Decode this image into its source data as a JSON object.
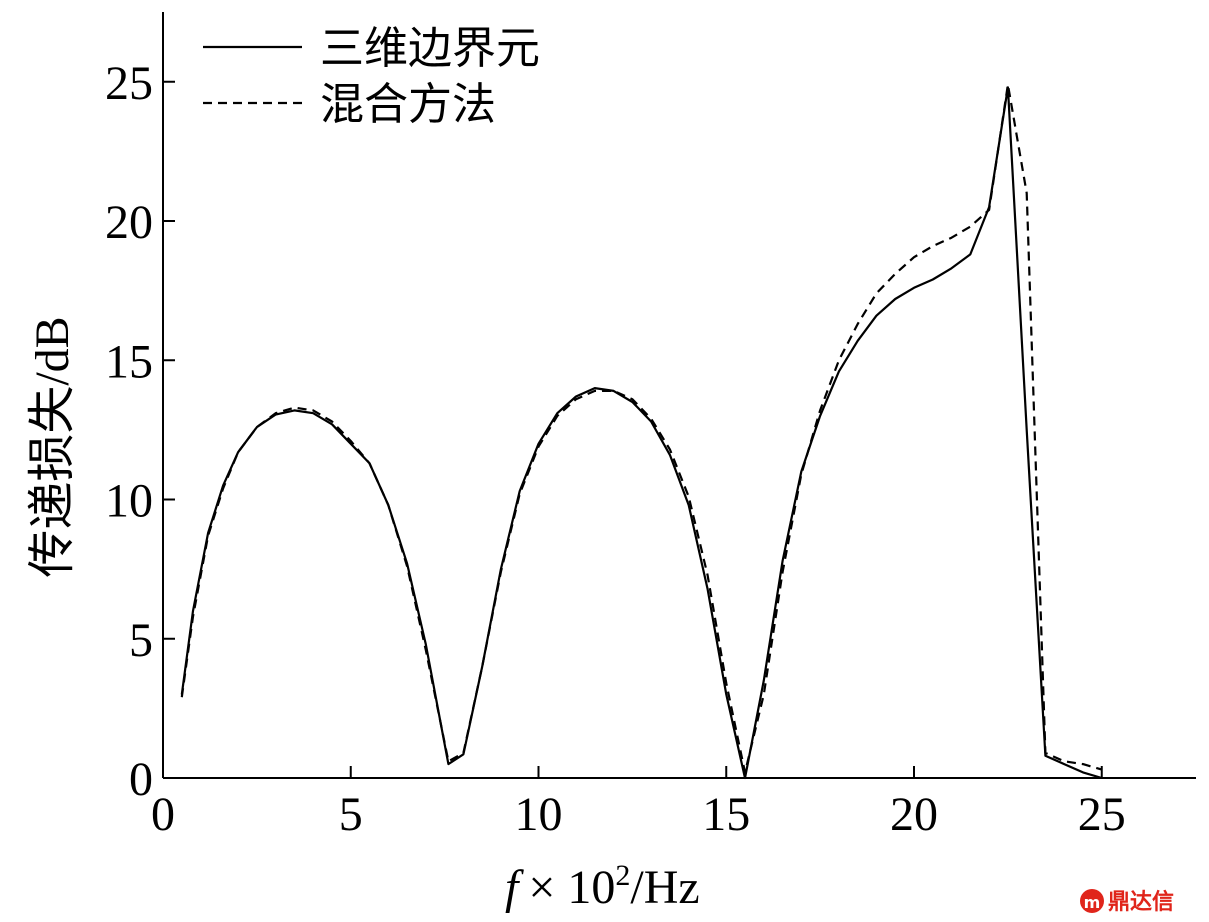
{
  "chart_data": {
    "type": "line",
    "title": "",
    "xlabel": {
      "italic": "f",
      "rest": "× 10",
      "sup": "2",
      "unit": "/Hz"
    },
    "ylabel": "传递损失/dB",
    "xlim": [
      0,
      27.5
    ],
    "ylim": [
      0,
      27.5
    ],
    "xticks": [
      0,
      5,
      10,
      15,
      20,
      25
    ],
    "yticks": [
      0,
      5,
      10,
      15,
      20,
      25
    ],
    "grid": false,
    "legend_position": "top-left",
    "series": [
      {
        "name": "三维边界元",
        "style": "solid",
        "color": "#000000",
        "x": [
          0.5,
          0.8,
          1.2,
          1.6,
          2.0,
          2.5,
          3.0,
          3.5,
          4.0,
          4.5,
          5.0,
          5.5,
          6.0,
          6.5,
          7.0,
          7.6,
          8.0,
          8.5,
          9.0,
          9.5,
          10.0,
          10.5,
          11.0,
          11.5,
          12.0,
          12.5,
          13.0,
          13.5,
          14.0,
          14.5,
          15.0,
          15.5,
          16.0,
          16.5,
          17.0,
          17.5,
          18.0,
          18.5,
          19.0,
          19.5,
          20.0,
          20.5,
          21.0,
          21.5,
          22.0,
          22.5,
          23.0,
          23.5,
          24.0,
          24.5,
          25.0
        ],
        "y": [
          3.0,
          6.0,
          8.8,
          10.5,
          11.7,
          12.6,
          13.05,
          13.2,
          13.1,
          12.7,
          12.0,
          11.3,
          9.8,
          7.7,
          4.8,
          0.5,
          0.85,
          4.0,
          7.5,
          10.3,
          12.0,
          13.1,
          13.7,
          14.0,
          13.9,
          13.5,
          12.8,
          11.6,
          9.8,
          6.8,
          3.0,
          0.0,
          3.5,
          7.8,
          11.0,
          13.0,
          14.6,
          15.7,
          16.6,
          17.2,
          17.6,
          17.9,
          18.3,
          18.8,
          20.5,
          24.8,
          12.5,
          0.8,
          0.5,
          0.2,
          0.0
        ]
      },
      {
        "name": "混合方法",
        "style": "dashed",
        "color": "#000000",
        "x": [
          0.5,
          0.8,
          1.2,
          1.6,
          2.0,
          2.5,
          3.0,
          3.5,
          4.0,
          4.5,
          5.0,
          5.5,
          6.0,
          6.5,
          7.0,
          7.6,
          8.0,
          8.5,
          9.0,
          9.5,
          10.0,
          10.5,
          11.0,
          11.5,
          12.0,
          12.5,
          13.0,
          13.5,
          14.0,
          14.5,
          15.0,
          15.5,
          16.0,
          16.5,
          17.0,
          17.5,
          18.0,
          18.5,
          19.0,
          19.5,
          20.0,
          20.5,
          21.0,
          21.5,
          22.0,
          22.5,
          23.0,
          23.5,
          24.0,
          24.5,
          25.0
        ],
        "y": [
          2.9,
          5.8,
          8.7,
          10.4,
          11.7,
          12.6,
          13.1,
          13.3,
          13.2,
          12.8,
          12.1,
          11.3,
          9.8,
          7.6,
          4.6,
          0.6,
          0.9,
          4.0,
          7.4,
          10.2,
          11.9,
          13.0,
          13.6,
          13.9,
          13.9,
          13.6,
          12.9,
          11.8,
          10.1,
          7.3,
          3.4,
          0.2,
          3.0,
          7.4,
          10.9,
          13.2,
          15.0,
          16.3,
          17.4,
          18.1,
          18.7,
          19.1,
          19.4,
          19.8,
          20.4,
          24.9,
          21.0,
          0.9,
          0.6,
          0.5,
          0.3
        ]
      }
    ]
  },
  "watermark": {
    "text": "鼎达信",
    "mark": "m",
    "color": "#e0251b"
  }
}
